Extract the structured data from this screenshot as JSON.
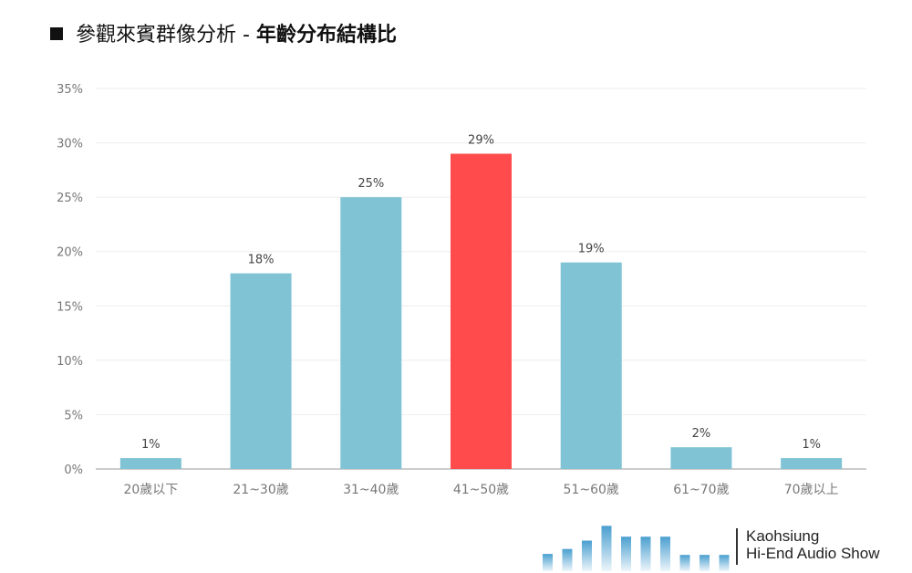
{
  "title": {
    "prefix": "參觀來賓群像分析 - ",
    "bold": "年齡分布結構比"
  },
  "chart_data": {
    "type": "bar",
    "categories": [
      "20歲以下",
      "21~30歲",
      "31~40歲",
      "41~50歲",
      "51~60歲",
      "61~70歲",
      "70歲以上"
    ],
    "values": [
      1,
      18,
      25,
      29,
      19,
      2,
      1
    ],
    "data_labels": [
      "1%",
      "18%",
      "25%",
      "29%",
      "19%",
      "2%",
      "1%"
    ],
    "ylim": [
      0,
      35
    ],
    "yticks": [
      "0%",
      "5%",
      "10%",
      "15%",
      "20%",
      "25%",
      "30%",
      "35%"
    ],
    "highlight_index": 3,
    "grid": true,
    "colors": {
      "bar": "#7FC3D5",
      "highlight": "#FF4B4B",
      "grid": "#EEEEEE",
      "axis": "#BBBBBB",
      "tick_text": "#777777",
      "label_text": "#444444"
    }
  },
  "logo": {
    "line1": "Kaohsiung",
    "line2": "Hi-End Audio Show",
    "icon": "equalizer-bars-icon",
    "levels": [
      0.35,
      0.45,
      0.62,
      0.92,
      0.7,
      0.7,
      0.7,
      0.33,
      0.33,
      0.33
    ]
  }
}
